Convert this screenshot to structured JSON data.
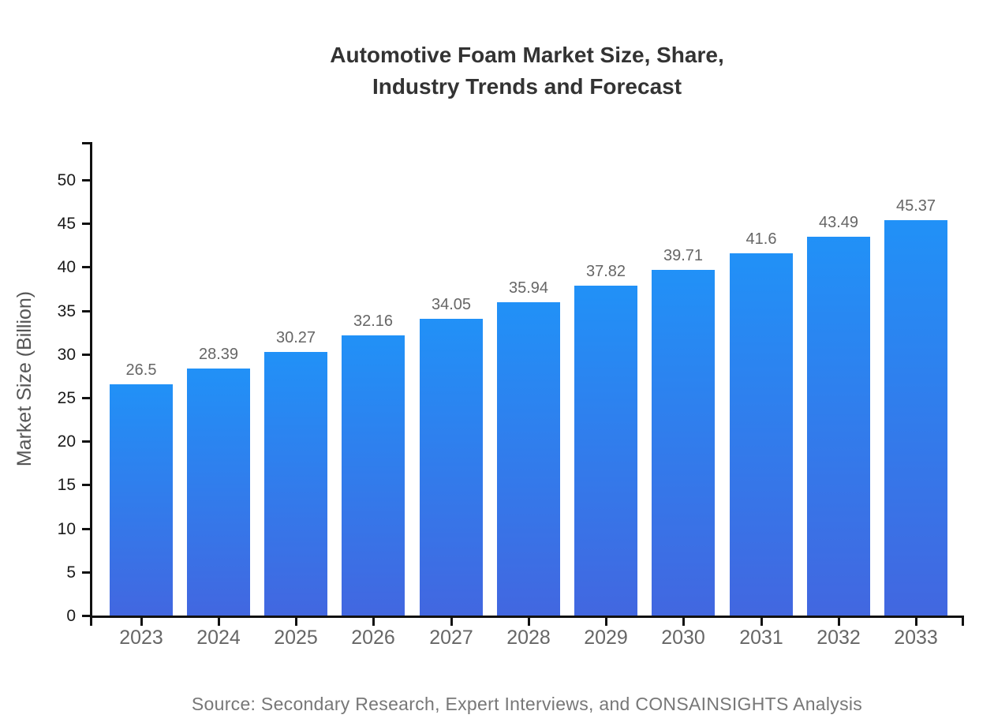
{
  "title_lines": [
    "Automotive Foam Market Size, Share,",
    "Industry Trends and Forecast"
  ],
  "source_text": "Source: Secondary Research, Expert Interviews, and CONSAINSIGHTS Analysis",
  "colors": {
    "bar_gradient_top": "#2191f7",
    "bar_gradient_bottom": "#4267e0",
    "axis": "#111111",
    "title_text": "#333333",
    "value_label_text": "#666666",
    "x_tick_label_text": "#666666",
    "y_tick_label_text": "#1a1a1a",
    "y_axis_title_text": "#555555",
    "source_text_color": "#777777"
  },
  "chart_data": {
    "type": "bar",
    "title": "Automotive Foam Market Size, Share, Industry Trends and Forecast",
    "categories": [
      "2023",
      "2024",
      "2025",
      "2026",
      "2027",
      "2028",
      "2029",
      "2030",
      "2031",
      "2032",
      "2033"
    ],
    "values": [
      26.5,
      28.39,
      30.27,
      32.16,
      34.05,
      35.94,
      37.82,
      39.71,
      41.6,
      43.49,
      45.37
    ],
    "value_labels": [
      "26.5",
      "28.39",
      "30.27",
      "32.16",
      "34.05",
      "35.94",
      "37.82",
      "39.71",
      "41.6",
      "43.49",
      "45.37"
    ],
    "xlabel": "",
    "ylabel": "Market Size (Billion)",
    "ylim": [
      0,
      54.4
    ],
    "y_ticks": [
      0,
      5,
      10,
      15,
      20,
      25,
      30,
      35,
      40,
      45,
      50
    ],
    "grid": false,
    "legend": "none",
    "bar_color": "blue gradient (light azure top to royal blue bottom)",
    "source": "Source: Secondary Research, Expert Interviews, and CONSAINSIGHTS Analysis"
  }
}
